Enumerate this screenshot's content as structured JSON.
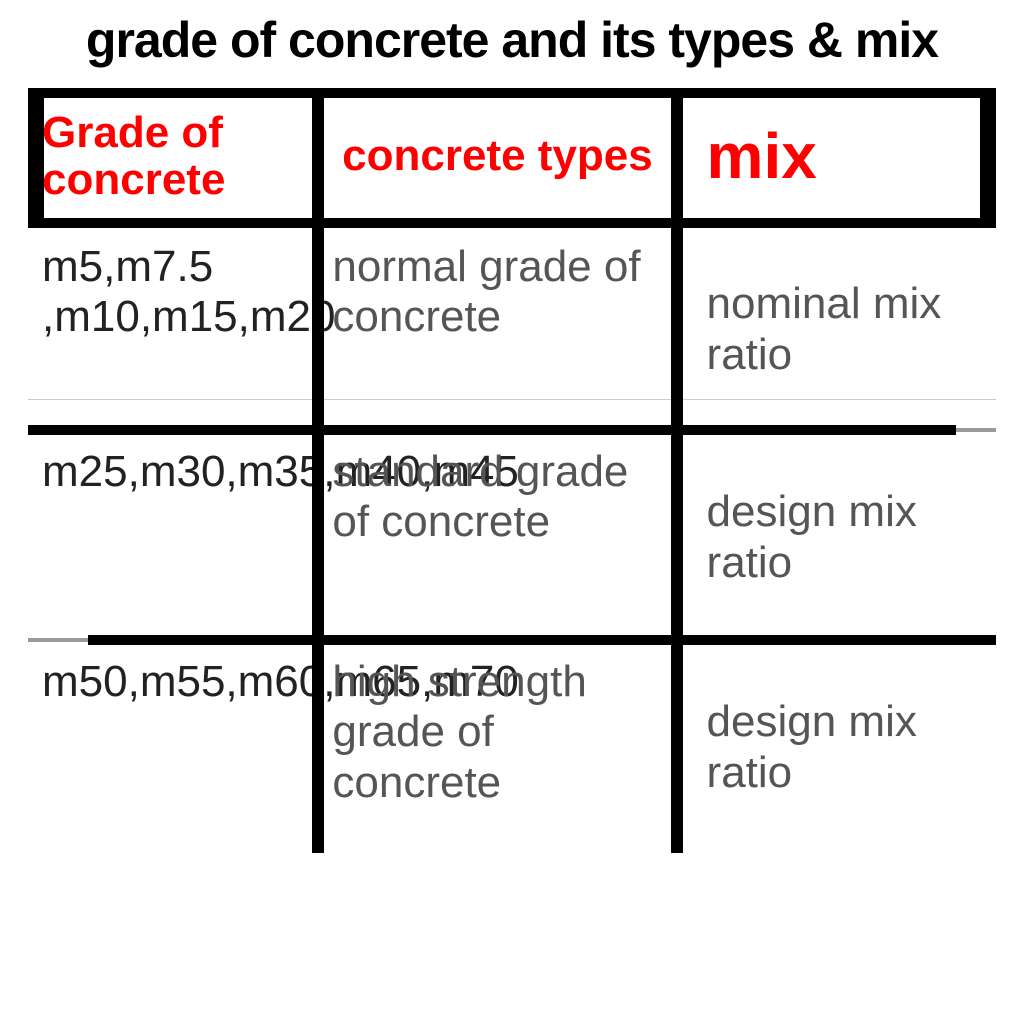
{
  "title": "grade of concrete and its types &  mix",
  "title_fontsize": 50,
  "title_color": "#000000",
  "header": {
    "col1": "Grade of concrete",
    "col2": "concrete types",
    "col3": "mix",
    "color": "#ff0000",
    "col1_fontsize": 44,
    "col2_fontsize": 44,
    "col3_fontsize": 64
  },
  "columns_width_pct": [
    30,
    37,
    33
  ],
  "rows": [
    {
      "grade": "m5,m7.5 ,m10,m15,m20",
      "type": "normal grade of concrete",
      "mix": "nominal mix ratio"
    },
    {
      "grade": "m25,m30,m35,m40,m45",
      "type": "standard grade of concrete",
      "mix": "design mix ratio"
    },
    {
      "grade": "m50,m55,m60,m65,m70",
      "type": "high strength grade of concrete",
      "mix": "design mix ratio"
    }
  ],
  "body_fontsize_col1": 44,
  "body_fontsize_col2": 44,
  "body_fontsize_col3": 44,
  "body_color_col1": "#222222",
  "body_color_col23": "#555555",
  "border_color": "#000000",
  "hsep_grey": "#9a9a9a",
  "background_color": "#ffffff",
  "header_row_height": 130,
  "body_row_height": 210,
  "thin_hairline_color": "#cccccc"
}
